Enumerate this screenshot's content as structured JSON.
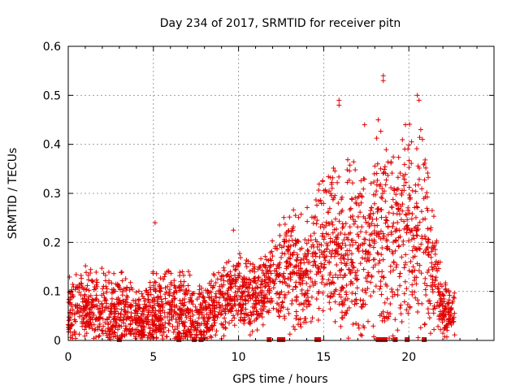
{
  "chart_data": {
    "type": "scatter",
    "title": "Day 234 of 2017, SRMTID for receiver pitn",
    "xlabel": "GPS time / hours",
    "ylabel": "SRMTID / TECUs",
    "xlim": [
      0,
      25
    ],
    "ylim": [
      0,
      0.6
    ],
    "grid": true,
    "x_ticks": [
      0,
      5,
      10,
      15,
      20
    ],
    "x_tick_labels": [
      "0",
      "5",
      "10",
      "15",
      "20"
    ],
    "y_ticks": [
      0,
      0.1,
      0.2,
      0.3,
      0.4,
      0.5,
      0.6
    ],
    "y_tick_labels": [
      "0",
      "0.1",
      "0.2",
      "0.3",
      "0.4",
      "0.5",
      "0.6"
    ],
    "point_color": "#e00000",
    "marker": "plus",
    "envelope": [
      {
        "x": 0.0,
        "base": 0.05,
        "spread": 0.06
      },
      {
        "x": 1.0,
        "base": 0.07,
        "spread": 0.06
      },
      {
        "x": 2.0,
        "base": 0.06,
        "spread": 0.07
      },
      {
        "x": 3.0,
        "base": 0.06,
        "spread": 0.07
      },
      {
        "x": 4.0,
        "base": 0.04,
        "spread": 0.05
      },
      {
        "x": 5.0,
        "base": 0.06,
        "spread": 0.07
      },
      {
        "x": 6.0,
        "base": 0.07,
        "spread": 0.06
      },
      {
        "x": 7.0,
        "base": 0.05,
        "spread": 0.07
      },
      {
        "x": 8.0,
        "base": 0.05,
        "spread": 0.05
      },
      {
        "x": 9.0,
        "base": 0.08,
        "spread": 0.06
      },
      {
        "x": 10.0,
        "base": 0.1,
        "spread": 0.06
      },
      {
        "x": 11.0,
        "base": 0.09,
        "spread": 0.06
      },
      {
        "x": 12.0,
        "base": 0.13,
        "spread": 0.06
      },
      {
        "x": 13.0,
        "base": 0.15,
        "spread": 0.1
      },
      {
        "x": 14.0,
        "base": 0.14,
        "spread": 0.1
      },
      {
        "x": 15.0,
        "base": 0.2,
        "spread": 0.12
      },
      {
        "x": 16.0,
        "base": 0.18,
        "spread": 0.14
      },
      {
        "x": 17.0,
        "base": 0.17,
        "spread": 0.15
      },
      {
        "x": 18.0,
        "base": 0.22,
        "spread": 0.16
      },
      {
        "x": 19.0,
        "base": 0.2,
        "spread": 0.16
      },
      {
        "x": 20.0,
        "base": 0.22,
        "spread": 0.17
      },
      {
        "x": 21.0,
        "base": 0.2,
        "spread": 0.15
      },
      {
        "x": 22.0,
        "base": 0.06,
        "spread": 0.05
      },
      {
        "x": 22.7,
        "base": 0.05,
        "spread": 0.04
      }
    ],
    "notable_points": [
      {
        "x": 5.1,
        "y": 0.24
      },
      {
        "x": 9.7,
        "y": 0.225
      },
      {
        "x": 15.9,
        "y": 0.49
      },
      {
        "x": 15.9,
        "y": 0.48
      },
      {
        "x": 18.5,
        "y": 0.54
      },
      {
        "x": 18.5,
        "y": 0.53
      },
      {
        "x": 20.5,
        "y": 0.5
      },
      {
        "x": 20.6,
        "y": 0.49
      },
      {
        "x": 17.4,
        "y": 0.44
      },
      {
        "x": 18.2,
        "y": 0.45
      },
      {
        "x": 19.8,
        "y": 0.44
      },
      {
        "x": 20.7,
        "y": 0.43
      },
      {
        "x": 20.8,
        "y": 0.41
      }
    ],
    "gap_markers_x": [
      3.0,
      6.5,
      7.4,
      7.8,
      11.8,
      12.4,
      12.6,
      14.6,
      14.7,
      18.2,
      18.4,
      18.6,
      19.2,
      19.9,
      20.9
    ]
  }
}
